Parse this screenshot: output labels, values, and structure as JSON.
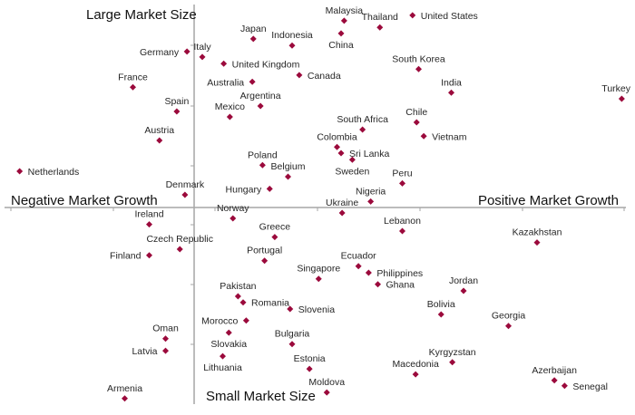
{
  "chart_data": {
    "type": "scatter",
    "title": "",
    "axis_labels": {
      "top": "Large Market Size",
      "bottom": "Small Market Size",
      "left": "Negative Market Growth",
      "right": "Positive Market Growth"
    },
    "grid": false,
    "marker": "diamond",
    "marker_color": "#9b0a3c",
    "axis_color": "#a6a6a6",
    "points": [
      {
        "name": "Malaysia",
        "x": 14.7,
        "y": 30.9,
        "label_pos": "above"
      },
      {
        "name": "Thailand",
        "x": 18.2,
        "y": 29.8,
        "label_pos": "above"
      },
      {
        "name": "United States",
        "x": 21.4,
        "y": 31.8,
        "label_pos": "right"
      },
      {
        "name": "Japan",
        "x": 5.8,
        "y": 27.9,
        "label_pos": "above"
      },
      {
        "name": "Indonesia",
        "x": 9.6,
        "y": 26.8,
        "label_pos": "above"
      },
      {
        "name": "China",
        "x": 14.4,
        "y": 28.8,
        "label_pos": "below"
      },
      {
        "name": "Germany",
        "x": -0.7,
        "y": 25.8,
        "label_pos": "left"
      },
      {
        "name": "Italy",
        "x": 0.8,
        "y": 24.9,
        "label_pos": "above"
      },
      {
        "name": "United Kingdom",
        "x": 2.9,
        "y": 23.8,
        "label_pos": "right"
      },
      {
        "name": "Canada",
        "x": 10.3,
        "y": 21.9,
        "label_pos": "right"
      },
      {
        "name": "South Korea",
        "x": 22.0,
        "y": 22.9,
        "label_pos": "above"
      },
      {
        "name": "France",
        "x": -6.0,
        "y": 19.9,
        "label_pos": "above"
      },
      {
        "name": "Australia",
        "x": 5.7,
        "y": 20.8,
        "label_pos": "left"
      },
      {
        "name": "Argentina",
        "x": 6.5,
        "y": 16.8,
        "label_pos": "above"
      },
      {
        "name": "India",
        "x": 25.2,
        "y": 19.0,
        "label_pos": "above"
      },
      {
        "name": "Turkey",
        "x": 41.9,
        "y": 18.0,
        "label_pos": "above"
      },
      {
        "name": "Spain",
        "x": -1.7,
        "y": 15.9,
        "label_pos": "above"
      },
      {
        "name": "Mexico",
        "x": 3.5,
        "y": 15.0,
        "label_pos": "above"
      },
      {
        "name": "Chile",
        "x": 21.8,
        "y": 14.1,
        "label_pos": "above"
      },
      {
        "name": "South Africa",
        "x": 16.5,
        "y": 12.9,
        "label_pos": "above"
      },
      {
        "name": "Vietnam",
        "x": 22.5,
        "y": 11.8,
        "label_pos": "right"
      },
      {
        "name": "Austria",
        "x": -3.4,
        "y": 11.1,
        "label_pos": "above"
      },
      {
        "name": "Colombia",
        "x": 14.0,
        "y": 10.0,
        "label_pos": "above"
      },
      {
        "name": "Sri Lanka",
        "x": 14.4,
        "y": 9.0,
        "label_pos": "right"
      },
      {
        "name": "Sweden",
        "x": 15.5,
        "y": 7.9,
        "label_pos": "below"
      },
      {
        "name": "Netherlands",
        "x": -17.1,
        "y": 6.0,
        "label_pos": "right"
      },
      {
        "name": "Poland",
        "x": 6.7,
        "y": 7.0,
        "label_pos": "above"
      },
      {
        "name": "Belgium",
        "x": 9.2,
        "y": 5.1,
        "label_pos": "above"
      },
      {
        "name": "Peru",
        "x": 20.4,
        "y": 4.0,
        "label_pos": "above"
      },
      {
        "name": "Hungary",
        "x": 7.4,
        "y": 3.1,
        "label_pos": "left"
      },
      {
        "name": "Nigeria",
        "x": 17.3,
        "y": 1.0,
        "label_pos": "above"
      },
      {
        "name": "Denmark",
        "x": -0.9,
        "y": 2.1,
        "label_pos": "above"
      },
      {
        "name": "Ukraine",
        "x": 14.5,
        "y": -0.9,
        "label_pos": "above"
      },
      {
        "name": "Norway",
        "x": 3.8,
        "y": -1.8,
        "label_pos": "above"
      },
      {
        "name": "Ireland",
        "x": -4.4,
        "y": -2.8,
        "label_pos": "above"
      },
      {
        "name": "Lebanon",
        "x": 20.4,
        "y": -3.9,
        "label_pos": "above"
      },
      {
        "name": "Greece",
        "x": 7.9,
        "y": -4.9,
        "label_pos": "above"
      },
      {
        "name": "Kazakhstan",
        "x": 33.6,
        "y": -5.8,
        "label_pos": "above"
      },
      {
        "name": "Czech Republic",
        "x": -1.4,
        "y": -6.9,
        "label_pos": "above"
      },
      {
        "name": "Finland",
        "x": -4.4,
        "y": -7.9,
        "label_pos": "left"
      },
      {
        "name": "Portugal",
        "x": 6.9,
        "y": -8.8,
        "label_pos": "above"
      },
      {
        "name": "Ecuador",
        "x": 16.1,
        "y": -9.7,
        "label_pos": "above"
      },
      {
        "name": "Philippines",
        "x": 17.1,
        "y": -10.8,
        "label_pos": "right"
      },
      {
        "name": "Singapore",
        "x": 12.2,
        "y": -11.8,
        "label_pos": "above"
      },
      {
        "name": "Ghana",
        "x": 18.0,
        "y": -12.7,
        "label_pos": "right"
      },
      {
        "name": "Jordan",
        "x": 26.4,
        "y": -13.8,
        "label_pos": "above"
      },
      {
        "name": "Pakistan",
        "x": 4.3,
        "y": -14.7,
        "label_pos": "above"
      },
      {
        "name": "Romania",
        "x": 4.8,
        "y": -15.7,
        "label_pos": "right"
      },
      {
        "name": "Slovenia",
        "x": 9.4,
        "y": -16.8,
        "label_pos": "right"
      },
      {
        "name": "Bolivia",
        "x": 24.2,
        "y": -17.7,
        "label_pos": "above"
      },
      {
        "name": "Morocco",
        "x": 5.1,
        "y": -18.7,
        "label_pos": "left"
      },
      {
        "name": "Georgia",
        "x": 30.8,
        "y": -19.6,
        "label_pos": "above"
      },
      {
        "name": "Oman",
        "x": -2.8,
        "y": -21.7,
        "label_pos": "above"
      },
      {
        "name": "Slovakia",
        "x": 3.4,
        "y": -20.7,
        "label_pos": "below"
      },
      {
        "name": "Bulgaria",
        "x": 9.6,
        "y": -22.6,
        "label_pos": "above"
      },
      {
        "name": "Latvia",
        "x": -2.8,
        "y": -23.7,
        "label_pos": "left"
      },
      {
        "name": "Kyrgyzstan",
        "x": 25.3,
        "y": -25.6,
        "label_pos": "above"
      },
      {
        "name": "Lithuania",
        "x": 2.8,
        "y": -24.6,
        "label_pos": "below"
      },
      {
        "name": "Estonia",
        "x": 11.3,
        "y": -26.7,
        "label_pos": "above"
      },
      {
        "name": "Macedonia",
        "x": 21.7,
        "y": -27.6,
        "label_pos": "above"
      },
      {
        "name": "Azerbaijan",
        "x": 35.3,
        "y": -28.6,
        "label_pos": "above"
      },
      {
        "name": "Senegal",
        "x": 36.3,
        "y": -29.5,
        "label_pos": "right"
      },
      {
        "name": "Moldova",
        "x": 13.0,
        "y": -30.6,
        "label_pos": "above"
      },
      {
        "name": "Armenia",
        "x": -6.8,
        "y": -31.6,
        "label_pos": "above"
      }
    ]
  }
}
